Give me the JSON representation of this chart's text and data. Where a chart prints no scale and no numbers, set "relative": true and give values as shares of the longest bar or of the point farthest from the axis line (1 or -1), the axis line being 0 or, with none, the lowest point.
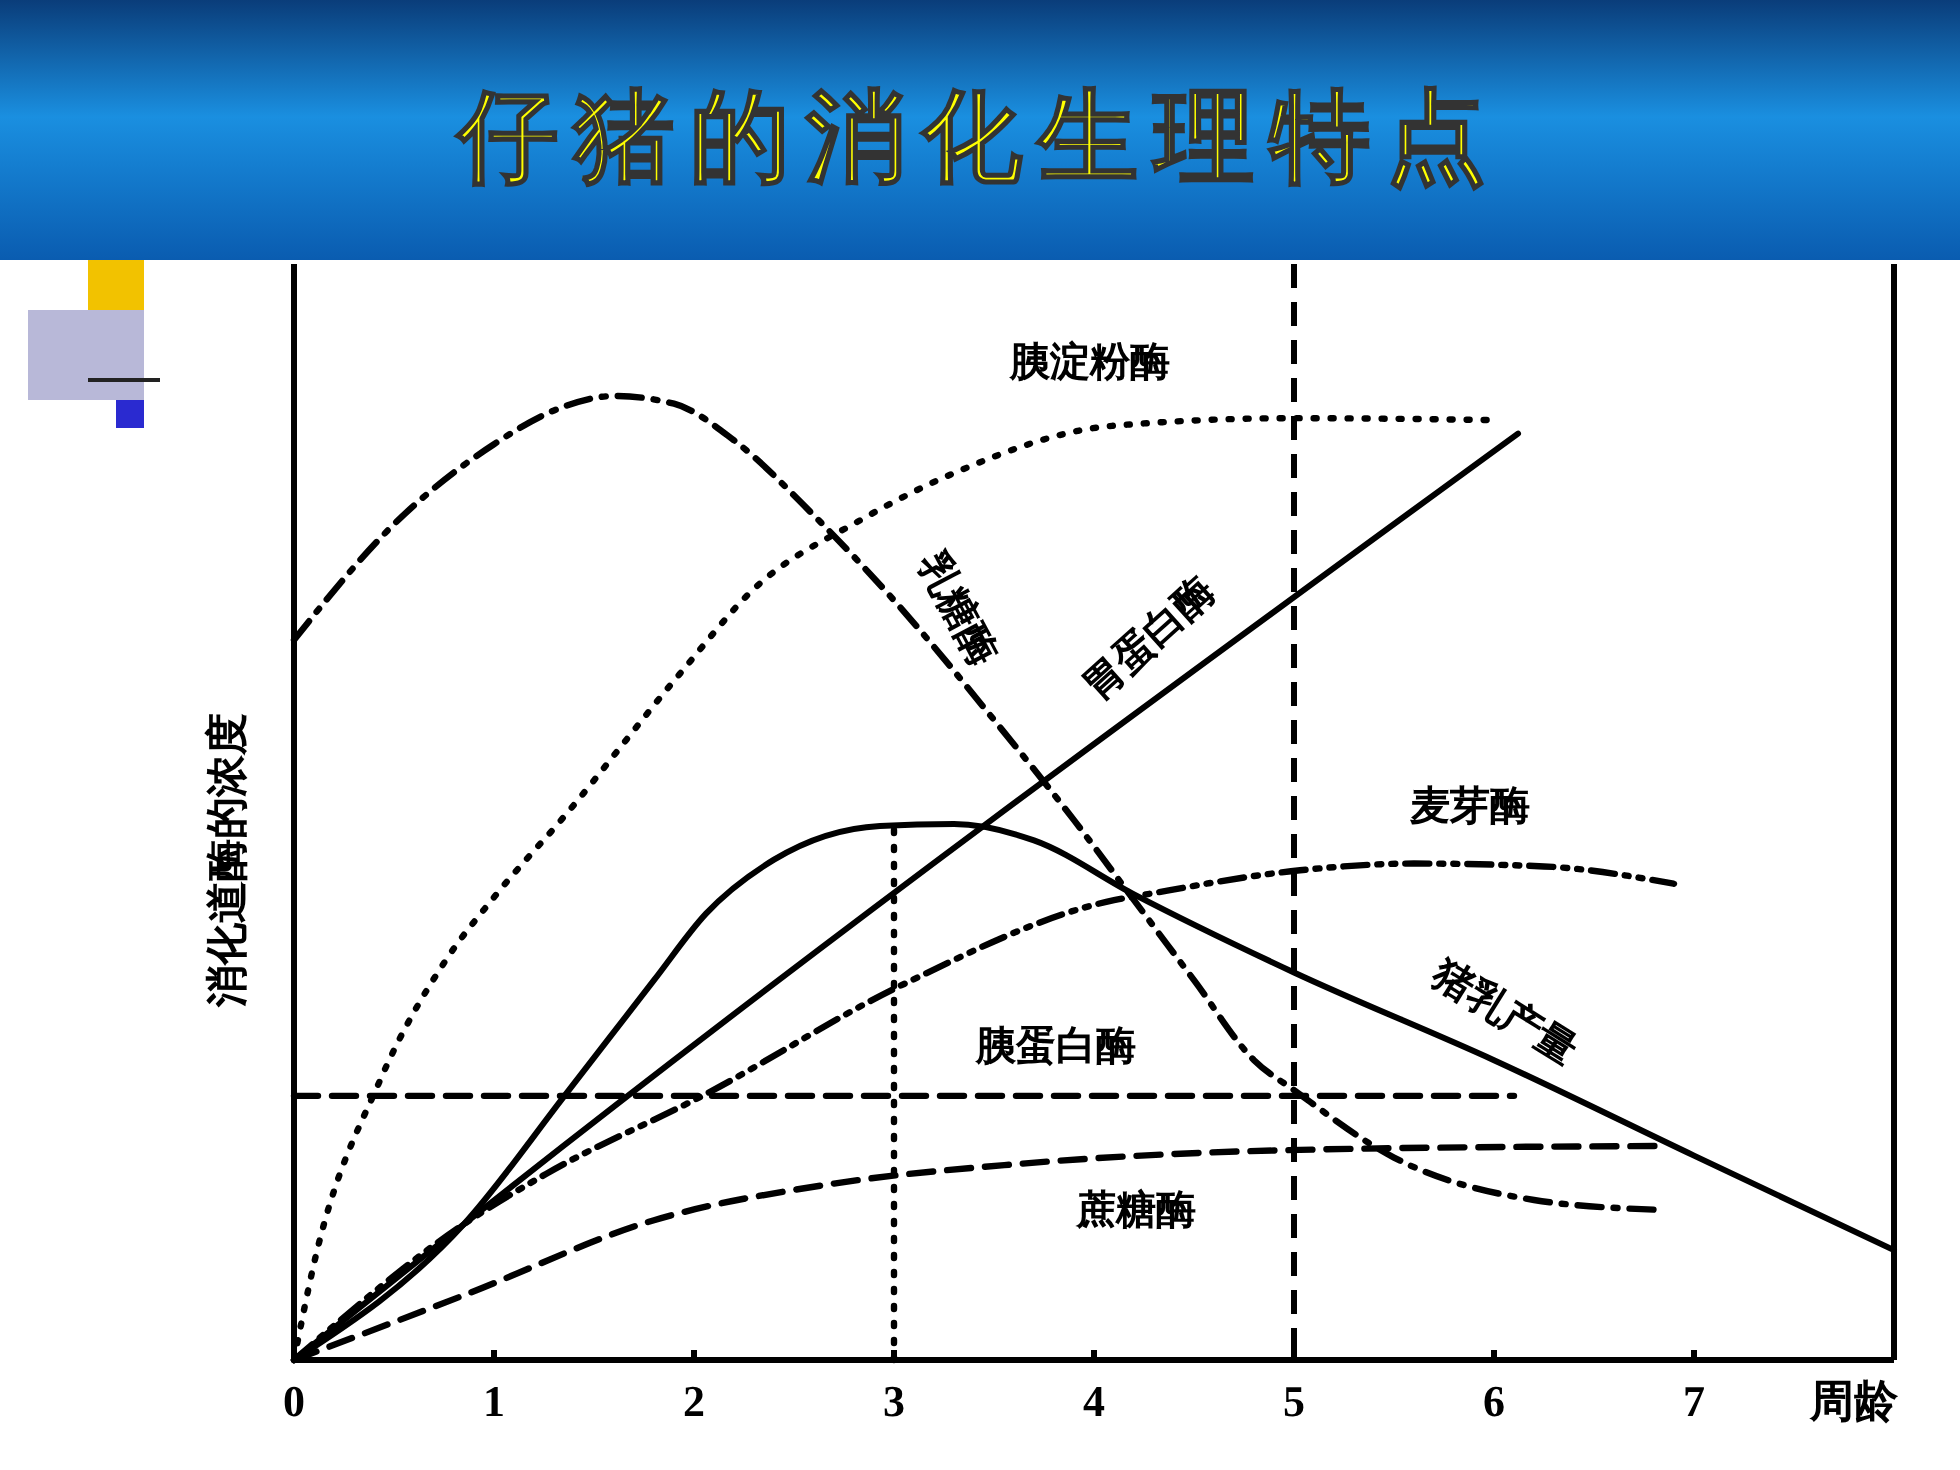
{
  "chart_data": {
    "type": "line",
    "title": "仔猪的消化生理特点",
    "xlabel": "周龄",
    "ylabel": "消化道酶的浓度",
    "relative": true,
    "xlim": [
      0,
      8
    ],
    "xticks": [
      0,
      1,
      2,
      3,
      4,
      5,
      6,
      7
    ],
    "marker": "none",
    "grid": false,
    "tick_labels": "x",
    "ref_lines": [
      {
        "axis": "x",
        "value": 5,
        "color": "#000000",
        "line_style": "dashed"
      },
      {
        "axis": "x",
        "value": 8,
        "color": "#000000",
        "line_style": "solid"
      }
    ],
    "series": [
      {
        "name": "乳糖酶",
        "color": "#000000",
        "line_style": "dashdot",
        "x": [
          0,
          0.5,
          1,
          1.3,
          1.6,
          1.9,
          2.2,
          2.6,
          3,
          3.5,
          3.9,
          4.2,
          4.5,
          4.8,
          5,
          5.5,
          6.2,
          6.8
        ],
        "values": [
          0.747,
          0.867,
          0.95,
          0.985,
          1,
          0.992,
          0.954,
          0.876,
          0.788,
          0.664,
          0.56,
          0.477,
          0.394,
          0.311,
          0.28,
          0.21,
          0.166,
          0.156
        ]
      },
      {
        "name": "胰淀粉酶",
        "color": "#000000",
        "line_style": "dotted",
        "x": [
          0,
          0.1,
          0.43,
          0.76,
          1,
          1.36,
          1.93,
          2.3,
          2.83,
          3.3,
          4.09,
          5,
          6
        ],
        "values": [
          0,
          0.1,
          0.29,
          0.415,
          0.48,
          0.566,
          0.712,
          0.8,
          0.871,
          0.92,
          0.969,
          0.977,
          0.975
        ]
      },
      {
        "name": "胃蛋白酶",
        "color": "#000000",
        "line_style": "solid",
        "x": [
          0,
          0.85,
          6.12
        ],
        "values": [
          0,
          0.141,
          0.961
        ]
      },
      {
        "name": "猪乳产量",
        "color": "#000000",
        "line_style": "solid",
        "x": [
          0,
          0.85,
          1.36,
          1.8,
          2.06,
          2.4,
          2.93,
          3.3,
          3.7,
          4.2,
          5,
          6,
          7,
          8
        ],
        "values": [
          0,
          0.141,
          0.276,
          0.394,
          0.463,
          0.519,
          0.554,
          0.556,
          0.539,
          0.483,
          0.402,
          0.311,
          0.212,
          0.114
        ]
      },
      {
        "name": "麦芽酶",
        "color": "#000000",
        "line_style": "dashdotdot",
        "x": [
          0,
          0.85,
          1.26,
          2.06,
          3.03,
          4.1,
          4.26,
          5.03,
          5.6,
          6.25,
          6.9
        ],
        "values": [
          0,
          0.141,
          0.193,
          0.276,
          0.388,
          0.477,
          0.483,
          0.508,
          0.515,
          0.512,
          0.494
        ]
      },
      {
        "name": "胰蛋白酶",
        "color": "#000000",
        "line_style": "dashed",
        "x": [
          0,
          6.1
        ],
        "values": [
          0.274,
          0.274
        ]
      },
      {
        "name": "蔗糖酶",
        "color": "#000000",
        "line_style": "dashed",
        "x": [
          0,
          0.86,
          1.8,
          2.7,
          3.6,
          5.03,
          6.82
        ],
        "values": [
          0,
          0.068,
          0.145,
          0.183,
          0.203,
          0.218,
          0.222
        ]
      },
      {
        "color": "#000000",
        "line_style": "dotted",
        "x": [
          3,
          3
        ],
        "values": [
          0,
          0.556
        ]
      }
    ]
  }
}
